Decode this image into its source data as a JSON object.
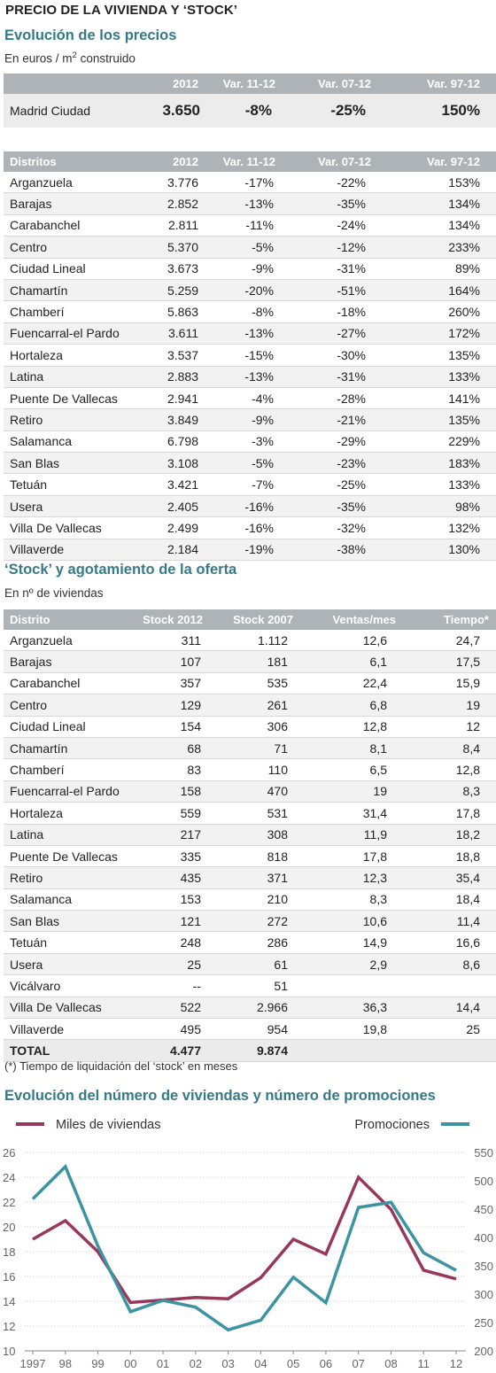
{
  "main_title": "PRECIO DE LA VIVIENDA Y ‘STOCK’",
  "prices": {
    "title": "Evolución de los precios",
    "unit_prefix": "En euros / m",
    "unit_sup": "2",
    "unit_suffix": " construido",
    "city_headers": [
      "",
      "2012",
      "Var. 11-12",
      "Var. 07-12",
      "Var. 97-12"
    ],
    "city_row": [
      "Madrid Ciudad",
      "3.650",
      "-8%",
      "-25%",
      "150%"
    ],
    "headers": [
      "Distritos",
      "2012",
      "Var. 11-12",
      "Var. 07-12",
      "Var. 97-12"
    ],
    "rows": [
      [
        "Arganzuela",
        "3.776",
        "-17%",
        "-22%",
        "153%"
      ],
      [
        "Barajas",
        "2.852",
        "-13%",
        "-35%",
        "134%"
      ],
      [
        "Carabanchel",
        "2.811",
        "-11%",
        "-24%",
        "134%"
      ],
      [
        "Centro",
        "5.370",
        "-5%",
        "-12%",
        "233%"
      ],
      [
        "Ciudad Lineal",
        "3.673",
        "-9%",
        "-31%",
        "89%"
      ],
      [
        "Chamartín",
        "5.259",
        "-20%",
        "-51%",
        "164%"
      ],
      [
        "Chamberí",
        "5.863",
        "-8%",
        "-18%",
        "260%"
      ],
      [
        "Fuencarral-el Pardo",
        "3.611",
        "-13%",
        "-27%",
        "172%"
      ],
      [
        "Hortaleza",
        "3.537",
        "-15%",
        "-30%",
        "135%"
      ],
      [
        "Latina",
        "2.883",
        "-13%",
        "-31%",
        "133%"
      ],
      [
        "Puente De Vallecas",
        "2.941",
        "-4%",
        "-28%",
        "141%"
      ],
      [
        "Retiro",
        "3.849",
        "-9%",
        "-21%",
        "135%"
      ],
      [
        "Salamanca",
        "6.798",
        "-3%",
        "-29%",
        "229%"
      ],
      [
        "San Blas",
        "3.108",
        "-5%",
        "-23%",
        "183%"
      ],
      [
        "Tetuán",
        "3.421",
        "-7%",
        "-25%",
        "133%"
      ],
      [
        "Usera",
        "2.405",
        "-16%",
        "-35%",
        "98%"
      ],
      [
        "Villa De Vallecas",
        "2.499",
        "-16%",
        "-32%",
        "132%"
      ],
      [
        "Villaverde",
        "2.184",
        "-19%",
        "-38%",
        "130%"
      ]
    ]
  },
  "stock": {
    "title": "‘Stock’ y agotamiento de la oferta",
    "unit": "En nº de viviendas",
    "headers": [
      "Distrito",
      "Stock 2012",
      "Stock 2007",
      "Ventas/mes",
      "Tiempo*"
    ],
    "rows": [
      [
        "Arganzuela",
        "311",
        "1.112",
        "12,6",
        "24,7"
      ],
      [
        "Barajas",
        "107",
        "181",
        "6,1",
        "17,5"
      ],
      [
        "Carabanchel",
        "357",
        "535",
        "22,4",
        "15,9"
      ],
      [
        "Centro",
        "129",
        "261",
        "6,8",
        "19"
      ],
      [
        "Ciudad Lineal",
        "154",
        "306",
        "12,8",
        "12"
      ],
      [
        "Chamartín",
        "68",
        "71",
        "8,1",
        "8,4"
      ],
      [
        "Chamberí",
        "83",
        "110",
        "6,5",
        "12,8"
      ],
      [
        "Fuencarral-el Pardo",
        "158",
        "470",
        "19",
        "8,3"
      ],
      [
        "Hortaleza",
        "559",
        "531",
        "31,4",
        "17,8"
      ],
      [
        "Latina",
        "217",
        "308",
        "11,9",
        "18,2"
      ],
      [
        "Puente De Vallecas",
        "335",
        "818",
        "17,8",
        "18,8"
      ],
      [
        "Retiro",
        "435",
        "371",
        "12,3",
        "35,4"
      ],
      [
        "Salamanca",
        "153",
        "210",
        "8,3",
        "18,4"
      ],
      [
        "San Blas",
        "121",
        "272",
        "10,6",
        "11,4"
      ],
      [
        "Tetuán",
        "248",
        "286",
        "14,9",
        "16,6"
      ],
      [
        "Usera",
        "25",
        "61",
        "2,9",
        "8,6"
      ],
      [
        "Vicálvaro",
        "--",
        "51",
        "",
        ""
      ],
      [
        "Villa De Vallecas",
        "522",
        "2.966",
        "36,3",
        "14,4"
      ],
      [
        "Villaverde",
        "495",
        "954",
        "19,8",
        "25"
      ]
    ],
    "total": [
      "TOTAL",
      "4.477",
      "9.874",
      "",
      ""
    ],
    "footnote": "(*) Tiempo de liquidación del ‘stock’ en meses"
  },
  "chart_data": {
    "type": "line",
    "title": "Evolución del número de viviendas y número de promociones",
    "x": [
      "1997",
      "98",
      "99",
      "00",
      "01",
      "02",
      "03",
      "04",
      "05",
      "06",
      "07",
      "08",
      "11",
      "12"
    ],
    "series": [
      {
        "name": "Miles de viviendas",
        "axis": "left",
        "color": "#98375a",
        "values": [
          19.0,
          20.5,
          18.0,
          13.9,
          14.1,
          14.3,
          14.2,
          15.9,
          19.0,
          17.8,
          24.0,
          21.4,
          16.5,
          15.8
        ]
      },
      {
        "name": "Promociones",
        "axis": "right",
        "color": "#3c93a2",
        "values": [
          468,
          525,
          385,
          269,
          289,
          277,
          237,
          254,
          330,
          285,
          453,
          462,
          373,
          342
        ]
      }
    ],
    "ylim_left": [
      10,
      26
    ],
    "yticks_left": [
      10,
      12,
      14,
      16,
      18,
      20,
      22,
      24,
      26
    ],
    "ylim_right": [
      200,
      550
    ],
    "yticks_right": [
      200,
      250,
      300,
      350,
      400,
      450,
      500,
      550
    ],
    "grid": true,
    "legend": "top"
  }
}
